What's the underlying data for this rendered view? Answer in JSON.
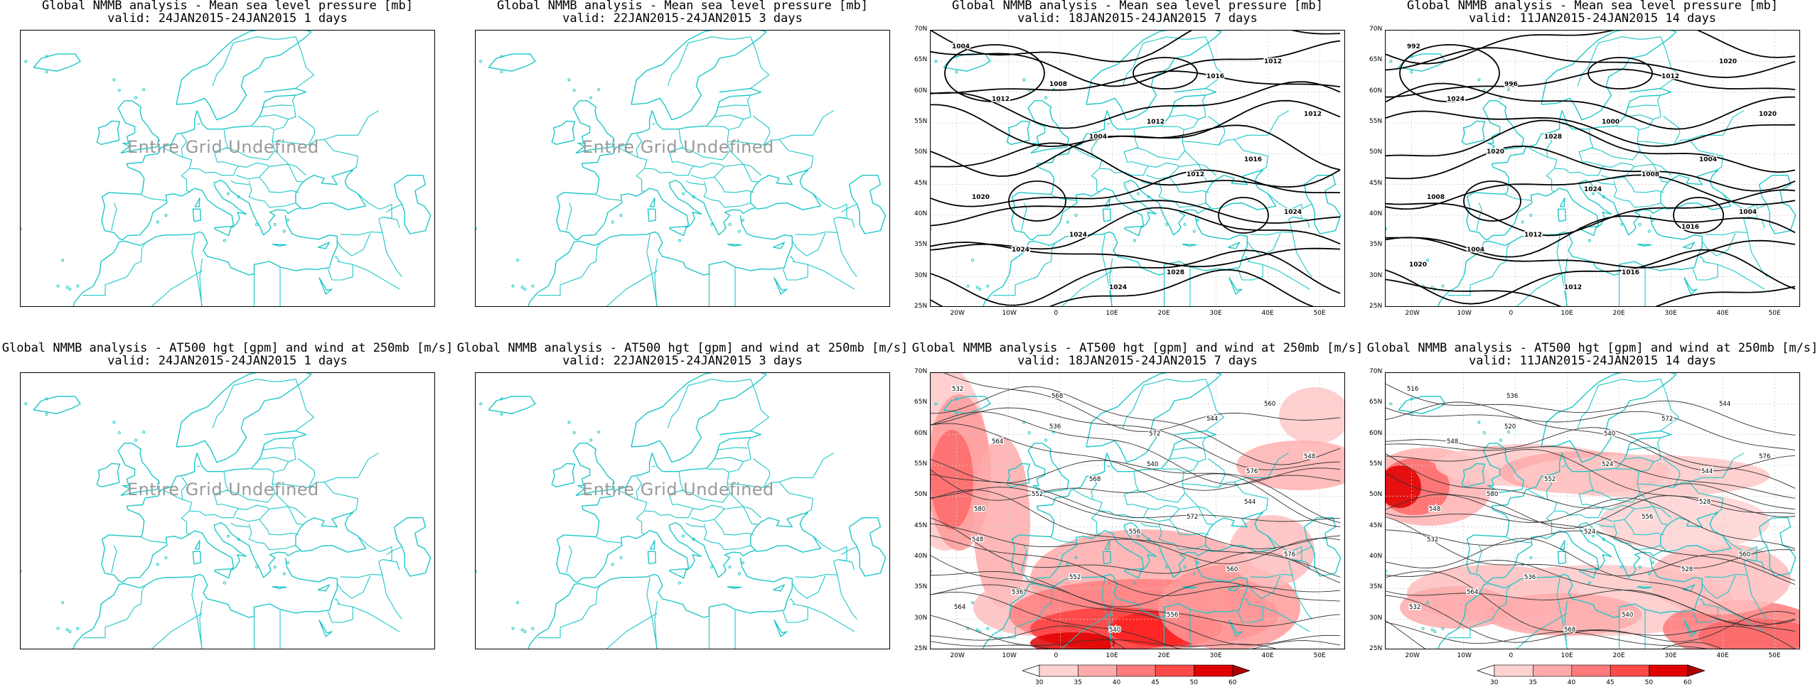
{
  "panels": {
    "p1": {
      "title1": "Global NMMB analysis - Mean sea level pressure [mb]",
      "title2": "valid: 24JAN2015-24JAN2015   1 days",
      "undefined_text": "Entire Grid Undefined"
    },
    "p2": {
      "title1": "Global NMMB analysis - Mean sea level pressure [mb]",
      "title2": "valid: 22JAN2015-24JAN2015   3 days",
      "undefined_text": "Entire Grid Undefined"
    },
    "p3": {
      "title1": "Global NMMB analysis - Mean sea level pressure [mb]",
      "title2": "valid: 18JAN2015-24JAN2015   7 days"
    },
    "p4": {
      "title1": "Global NMMB analysis - Mean sea level pressure [mb]",
      "title2": "valid: 11JAN2015-24JAN2015   14 days"
    },
    "p5": {
      "title1": "Global NMMB analysis - AT500 hgt [gpm] and wind at 250mb [m/s]",
      "title2": "valid: 24JAN2015-24JAN2015   1 days",
      "undefined_text": "Entire Grid Undefined"
    },
    "p6": {
      "title1": "Global NMMB analysis - AT500 hgt [gpm] and wind at 250mb [m/s]",
      "title2": "valid: 22JAN2015-24JAN2015   3 days",
      "undefined_text": "Entire Grid Undefined"
    },
    "p7": {
      "title1": "Global NMMB analysis - AT500 hgt [gpm] and wind at 250mb [m/s]",
      "title2": "valid: 18JAN2015-24JAN2015   7 days"
    },
    "p8": {
      "title1": "Global NMMB analysis - AT500 hgt [gpm] and wind at 250mb [m/s]",
      "title2": "valid: 11JAN2015-24JAN2015   14 days"
    }
  },
  "axes": {
    "lat_labels": [
      "70N",
      "65N",
      "60N",
      "55N",
      "50N",
      "45N",
      "40N",
      "35N",
      "30N",
      "25N"
    ],
    "lon_labels": [
      "20W",
      "10W",
      "0",
      "10E",
      "20E",
      "30E",
      "40E",
      "50E"
    ]
  },
  "contours": {
    "p3": [
      "1004",
      "1008",
      "1012",
      "1016",
      "1020",
      "1024",
      "1028",
      "1012",
      "1012",
      "1004",
      "1012",
      "1024",
      "1024",
      "1024",
      "1016",
      "1012"
    ],
    "p4": [
      "992",
      "996",
      "1000",
      "1004",
      "1008",
      "1012",
      "1016",
      "1020",
      "1024",
      "1028",
      "1008",
      "1004",
      "1004",
      "1012",
      "1012",
      "1020",
      "1020",
      "1024",
      "1016",
      "1020"
    ],
    "p7": [
      "532",
      "536",
      "540",
      "544",
      "548",
      "552",
      "556",
      "560",
      "564",
      "568",
      "572",
      "576",
      "536",
      "540",
      "544",
      "548",
      "552",
      "556",
      "560",
      "564",
      "568",
      "572",
      "576",
      "580"
    ],
    "p8": [
      "516",
      "520",
      "524",
      "528",
      "532",
      "536",
      "540",
      "544",
      "548",
      "552",
      "556",
      "560",
      "564",
      "568",
      "572",
      "576",
      "580",
      "524",
      "528",
      "532",
      "536",
      "540",
      "544",
      "548"
    ]
  },
  "colorbar": {
    "labels": [
      "30",
      "35",
      "40",
      "45",
      "50",
      "60"
    ],
    "colors": [
      "#ffffff",
      "#ffd2d2",
      "#ffaaaa",
      "#ff7a7a",
      "#ff4a4a",
      "#e00000",
      "#b00000"
    ]
  },
  "colors": {
    "coast": "#1ec7c7",
    "contour": "#000000",
    "hgt": "#333333",
    "grid": "#cfcfcf"
  }
}
